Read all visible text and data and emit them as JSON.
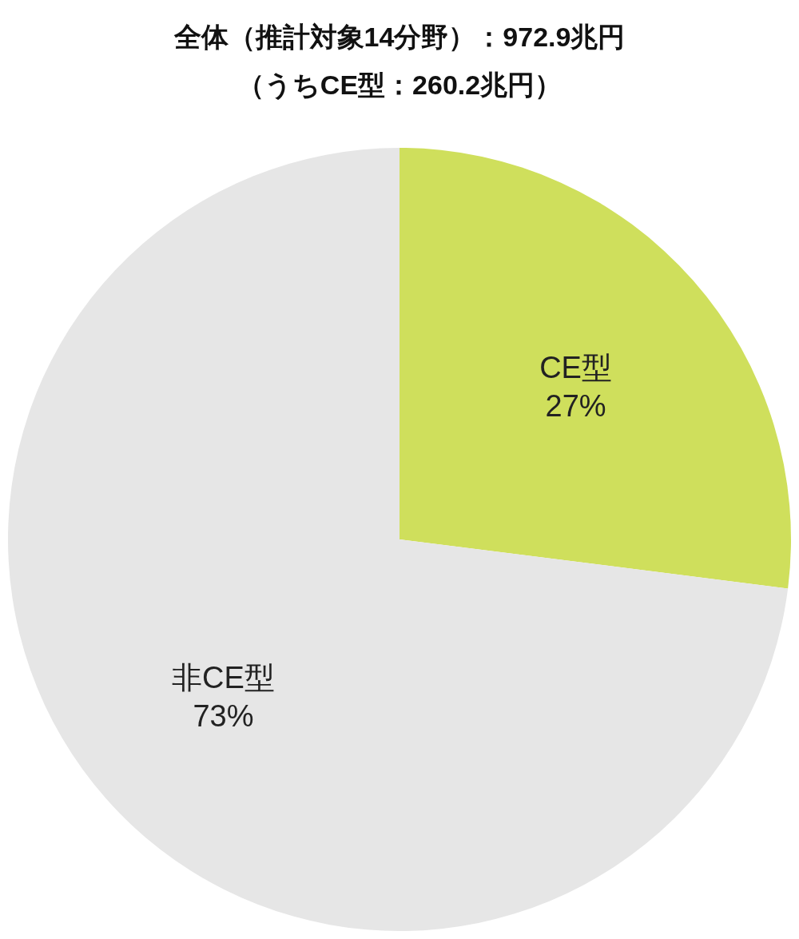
{
  "chart_data": {
    "type": "pie",
    "title": "全体（推計対象14分野）：972.9兆円",
    "subtitle": "（うちCE型：260.2兆円）",
    "categories": [
      "CE型",
      "非CE型"
    ],
    "values": [
      27,
      73
    ],
    "colors": [
      "#cfdf5c",
      "#e6e6e6"
    ],
    "value_labels": [
      "27%",
      "73%"
    ]
  }
}
